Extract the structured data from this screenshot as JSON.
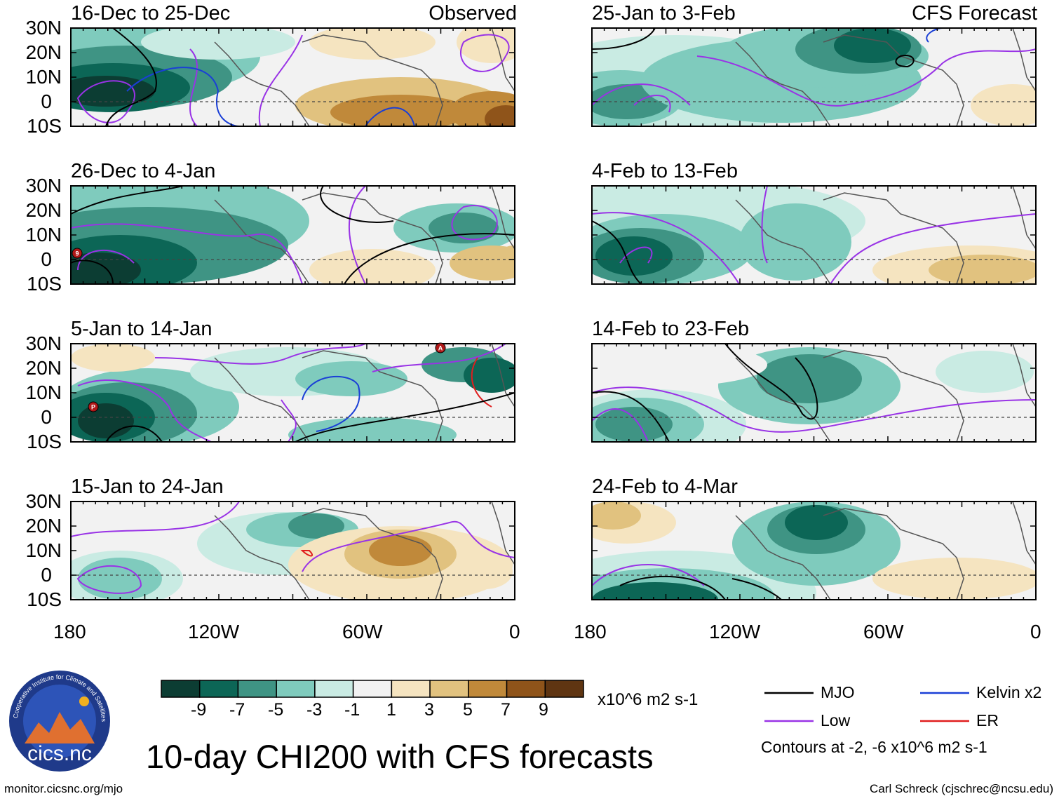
{
  "colors": {
    "scale": [
      "#0c3d33",
      "#0c6656",
      "#3f9484",
      "#7fcbbd",
      "#c9ebe3",
      "#f2f2f2",
      "#f5e4c0",
      "#e1c27f",
      "#c0893a",
      "#8f541a",
      "#5f3512"
    ],
    "mjo": "#000000",
    "kelvin": "#1a3fd6",
    "low": "#9933e6",
    "er": "#e01e1e",
    "coast": "#555555"
  },
  "panel_types": {
    "observed": "Observed",
    "forecast": "CFS Forecast"
  },
  "panels": [
    {
      "title": "16-Dec to 25-Dec",
      "kind": "observed"
    },
    {
      "title": "26-Dec to 4-Jan",
      "kind": "observed"
    },
    {
      "title": "5-Jan to 14-Jan",
      "kind": "observed"
    },
    {
      "title": "15-Jan to 24-Jan",
      "kind": "observed"
    },
    {
      "title": "25-Jan to 3-Feb",
      "kind": "forecast"
    },
    {
      "title": "4-Feb to 13-Feb",
      "kind": "forecast"
    },
    {
      "title": "14-Feb to 23-Feb",
      "kind": "forecast"
    },
    {
      "title": "24-Feb to 4-Mar",
      "kind": "forecast"
    }
  ],
  "axes": {
    "lat_labels": [
      "30N",
      "20N",
      "10N",
      "0",
      "10S"
    ],
    "lon_labels": [
      "180",
      "120W",
      "60W",
      "0"
    ]
  },
  "colorbar": {
    "labels": [
      "-9",
      "-7",
      "-5",
      "-3",
      "-1",
      "1",
      "3",
      "5",
      "7",
      "9"
    ],
    "units": "x10^6 m2 s-1"
  },
  "legend": {
    "mjo": "MJO",
    "kelvin": "Kelvin x2",
    "low": "Low",
    "er": "ER",
    "contours_note": "Contours at -2, -6 x10^6 m2 s-1"
  },
  "title": "10-day CHI200 with CFS forecasts",
  "logo_text": "cics.nc",
  "logo_ring_text": "Cooperative Institute for Climate and Satellites",
  "footer": {
    "url": "monitor.cicsnc.org/mjo",
    "credit": "Carl Schreck (cjschrec@ncsu.edu)"
  },
  "storm_markers": [
    {
      "panel": 1,
      "label": "9"
    },
    {
      "panel": 2,
      "label": "A"
    },
    {
      "panel": 2,
      "label": "P"
    }
  ]
}
